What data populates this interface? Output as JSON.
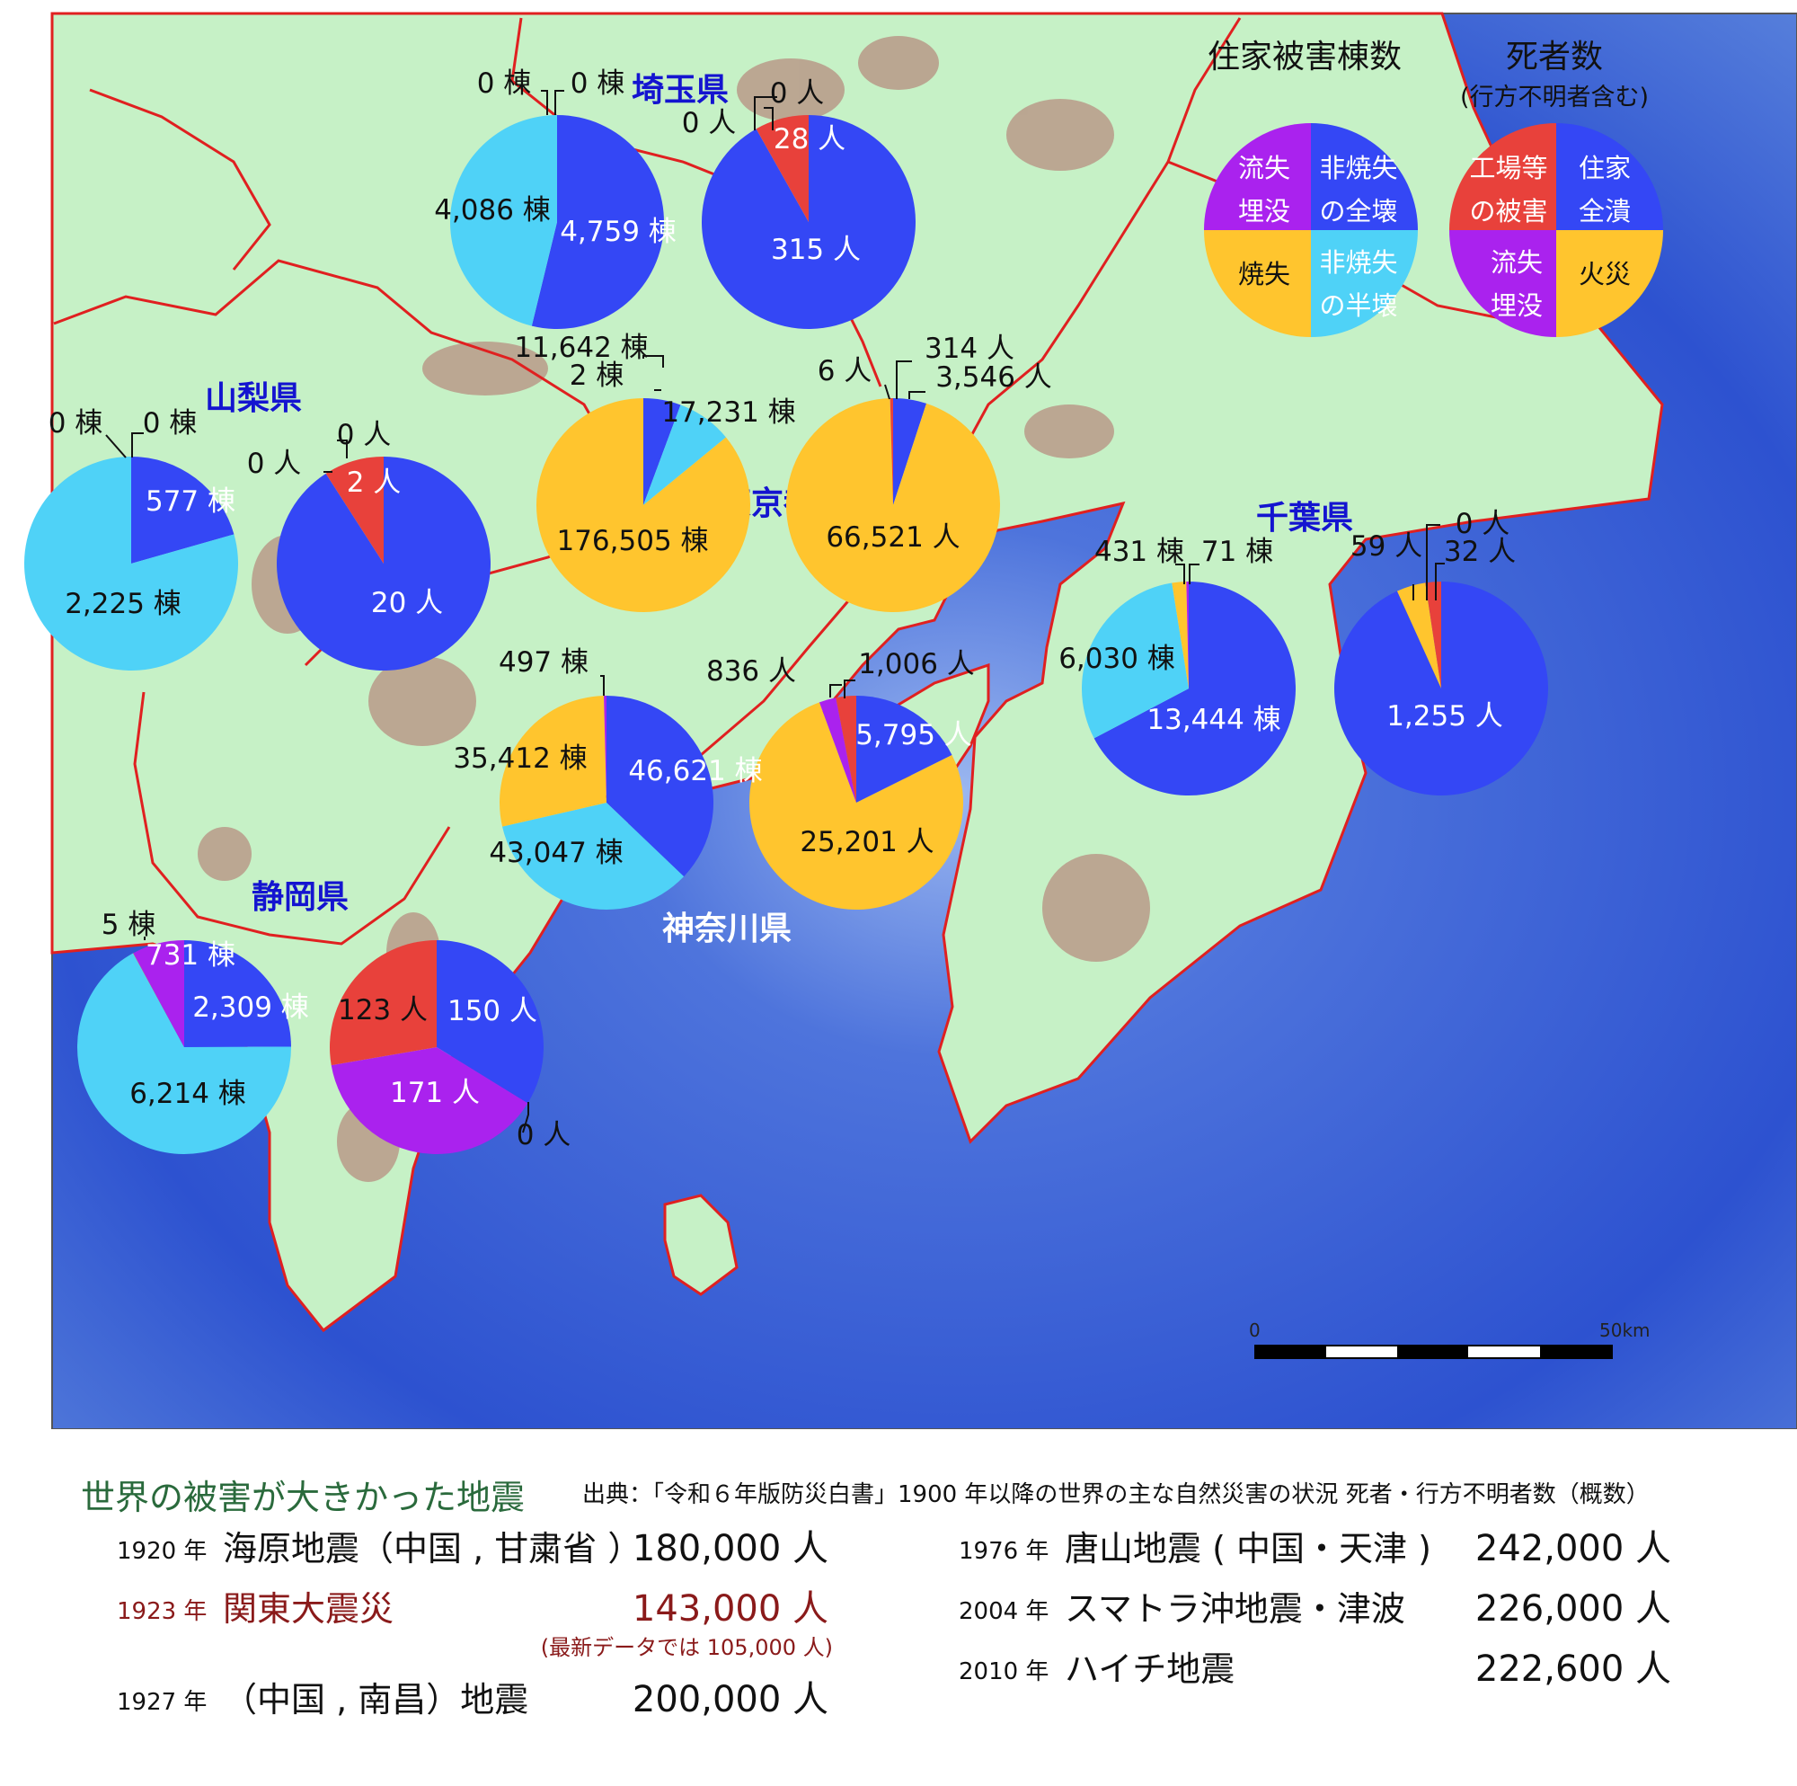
{
  "legend": {
    "housing_title": "住家被害棟数",
    "deaths_title": "死者数",
    "deaths_subtitle": "(行方不明者含む)",
    "housing_labels": {
      "ne": [
        "非焼失",
        "の全壊"
      ],
      "nw": [
        "流失",
        "埋没"
      ],
      "sw": [
        "焼失"
      ],
      "se": [
        "非焼失",
        "の半壊"
      ]
    },
    "deaths_labels": {
      "ne": [
        "住家",
        "全潰"
      ],
      "nw": [
        "工場等",
        "の被害"
      ],
      "sw": [
        "流失",
        "埋没"
      ],
      "se": [
        "火災"
      ]
    }
  },
  "colors": {
    "collapse": "#3447f5",
    "half": "#4fd2f7",
    "fire": "#ffc52e",
    "flood": "#aa22ee",
    "factory": "#e8413b",
    "sea": "#3f63d8",
    "land": "#c6f1c6",
    "border": "#e02020"
  },
  "chart_data": {
    "type": "pie",
    "scale": {
      "label_start": "0",
      "label_end": "50km"
    },
    "prefectures": [
      {
        "name": "埼玉県",
        "housing": {
          "collapse": "4,759 棟",
          "half": "4,086 棟",
          "fire": "0 棟",
          "flood": "0 棟"
        },
        "deaths": {
          "collapse": "315 人",
          "factory": "28 人",
          "fire": "0 人",
          "flood": "0 人"
        }
      },
      {
        "name": "山梨県",
        "housing": {
          "collapse": "577 棟",
          "half": "2,225 棟",
          "fire": "0 棟",
          "flood": "0 棟"
        },
        "deaths": {
          "collapse": "20 人",
          "factory": "2 人",
          "fire": "0 人",
          "flood": "0 人"
        }
      },
      {
        "name": "東京都",
        "housing": {
          "collapse": "11,642 棟",
          "half": "17,231 棟",
          "fire": "176,505 棟",
          "flood": "2 棟"
        },
        "deaths": {
          "collapse": "3,546 人",
          "factory": "314 人",
          "fire": "66,521 人",
          "flood": "6 人"
        }
      },
      {
        "name": "千葉県",
        "housing": {
          "collapse": "13,444 棟",
          "half": "6,030 棟",
          "fire": "431 棟",
          "flood": "71 棟"
        },
        "deaths": {
          "collapse": "1,255 人",
          "factory": "32 人",
          "fire": "59 人",
          "flood": "0 人"
        }
      },
      {
        "name": "神奈川県",
        "housing": {
          "collapse": "46,621 棟",
          "half": "43,047 棟",
          "fire": "35,412 棟",
          "flood": "497 棟"
        },
        "deaths": {
          "collapse": "5,795 人",
          "factory": "1,006 人",
          "fire": "25,201 人",
          "flood": "836 人"
        }
      },
      {
        "name": "静岡県",
        "housing": {
          "collapse": "2,309 棟",
          "half": "6,214 棟",
          "fire": "5 棟",
          "flood": "731 棟"
        },
        "deaths": {
          "collapse": "150 人",
          "factory": "123 人",
          "fire": "0 人",
          "flood": "171 人"
        }
      }
    ]
  },
  "world": {
    "title": "世界の被害が大きかった地震",
    "source": "出典：「令和６年版防災白書」1900 年以降の世界の主な自然災害の状況 死者・行方不明者数（概数）",
    "left": [
      {
        "year": "1920 年",
        "name": "海原地震（中国 , 甘粛省 ）",
        "deaths": "180,000 人"
      },
      {
        "year": "1923 年",
        "name": "関東大震災",
        "deaths": "143,000 人",
        "note": "(最新データでは 105,000 人)"
      },
      {
        "year": "1927 年",
        "name": "（中国 , 南昌）地震",
        "deaths": "200,000 人"
      }
    ],
    "right": [
      {
        "year": "1976 年",
        "name": "唐山地震 ( 中国・天津 )",
        "deaths": "242,000 人"
      },
      {
        "year": "2004 年",
        "name": "スマトラ沖地震・津波",
        "deaths": "226,000 人"
      },
      {
        "year": "2010 年",
        "name": "ハイチ地震",
        "deaths": "222,600 人"
      }
    ]
  }
}
